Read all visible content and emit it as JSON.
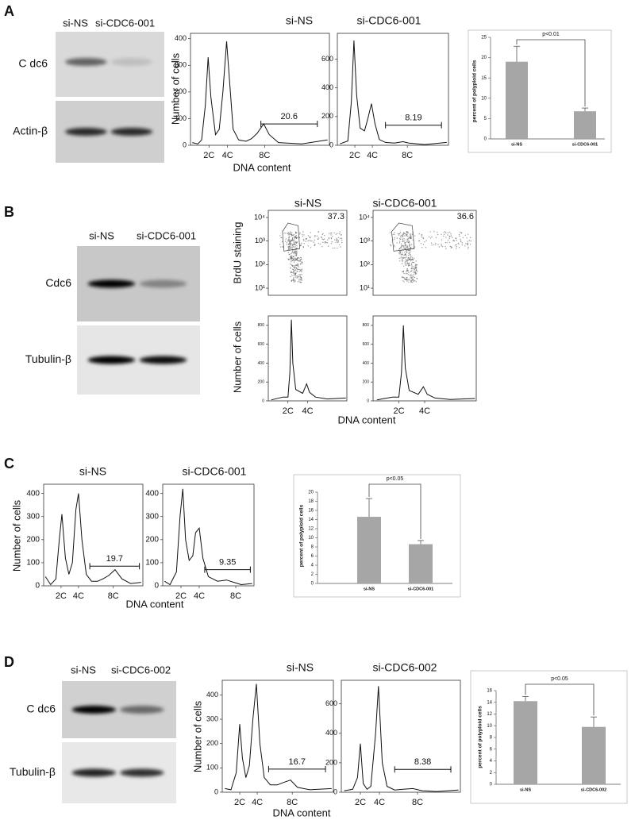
{
  "panels": [
    {
      "label": "A",
      "blot": {
        "lanes": [
          "si-NS",
          "si-CDC6-001"
        ],
        "rows": [
          "C dc6",
          "Actin-β"
        ]
      },
      "ylabel": "Number of cells",
      "xlabel": "DNA content"
    },
    {
      "label": "B",
      "blot": {
        "lanes": [
          "si-NS",
          "si-CDC6-001"
        ],
        "rows": [
          "Cdc6",
          "Tubulin-β"
        ]
      },
      "ylabel": "Number of cells",
      "xlabel": "DNA content"
    },
    {
      "label": "C",
      "ylabel": "Number of cells",
      "xlabel": "DNA content"
    },
    {
      "label": "D",
      "blot": {
        "lanes": [
          "si-NS",
          "si-CDC6-002"
        ],
        "rows": [
          "C dc6",
          "Tubulin-β"
        ]
      },
      "ylabel": "Number of cells",
      "xlabel": "DNA content"
    }
  ],
  "chart_data": [
    {
      "type": "line",
      "title": "si-NS",
      "x": [
        0.2,
        0.8,
        1.2,
        1.6,
        1.9,
        2.2,
        2.7,
        3.1,
        3.5,
        3.9,
        4.2,
        4.6,
        5.2,
        6,
        6.6,
        7.2,
        7.9,
        8.5,
        9.5,
        12,
        14.8
      ],
      "values": [
        10,
        5,
        20,
        150,
        330,
        180,
        40,
        60,
        200,
        390,
        250,
        60,
        20,
        15,
        25,
        45,
        80,
        40,
        10,
        5,
        20
      ],
      "xlim": [
        0,
        15
      ],
      "ylim": [
        0,
        420
      ],
      "yticks": [
        0,
        100,
        200,
        300,
        400
      ],
      "xticks": [
        {
          "value": 2,
          "label": "2C"
        },
        {
          "value": 4,
          "label": "4C"
        },
        {
          "value": 8,
          "label": "8C"
        }
      ],
      "gate": {
        "value": 20.6,
        "x": [
          7.6,
          13.7
        ],
        "y": 80
      },
      "color": "#111111"
    },
    {
      "type": "line",
      "title": "si-CDC6-001",
      "x": [
        0.3,
        1.2,
        1.6,
        1.9,
        2.2,
        2.6,
        3.1,
        3.5,
        3.9,
        4.3,
        4.8,
        5.5,
        6.5,
        7.5,
        8.2,
        10,
        12.5
      ],
      "values": [
        10,
        30,
        300,
        730,
        350,
        120,
        100,
        190,
        290,
        150,
        40,
        20,
        15,
        25,
        15,
        5,
        20
      ],
      "xlim": [
        0,
        12.7
      ],
      "ylim": [
        0,
        780
      ],
      "yticks": [
        0,
        200,
        400,
        600
      ],
      "xticks": [
        {
          "value": 2,
          "label": "2C"
        },
        {
          "value": 4,
          "label": "4C"
        },
        {
          "value": 8,
          "label": "8C"
        }
      ],
      "gate": {
        "value": 8.19,
        "x": [
          5.5,
          11.9
        ],
        "y": 140
      },
      "color": "#111111"
    },
    {
      "type": "bar",
      "categories": [
        "si-NS",
        "si-CDC6-001"
      ],
      "values": [
        19,
        6.8
      ],
      "errors": [
        3.8,
        0.8
      ],
      "ylim": [
        0,
        25
      ],
      "yticks": [
        0,
        5,
        10,
        15,
        20,
        25
      ],
      "ylabel": "percent of polyploid cells",
      "annotation": "p<0.01",
      "color": "#a6a6a6"
    },
    {
      "type": "density",
      "title": "si-NS",
      "ylabel": "BrdU staining",
      "ylim": [
        5,
        20000
      ],
      "log_y": true,
      "yticks": [
        {
          "value": 10,
          "label": "10¹"
        },
        {
          "value": 100,
          "label": "10²"
        },
        {
          "value": 1000,
          "label": "10³"
        },
        {
          "value": 10000,
          "label": "10⁴"
        }
      ],
      "gate_value": 37.3
    },
    {
      "type": "density",
      "title": "si-CDC6-001",
      "ylim": [
        5,
        20000
      ],
      "log_y": true,
      "yticks": [
        {
          "value": 10,
          "label": "10¹"
        },
        {
          "value": 100,
          "label": "10²"
        },
        {
          "value": 1000,
          "label": "10³"
        },
        {
          "value": 10000,
          "label": "10⁴"
        }
      ],
      "gate_value": 36.6
    },
    {
      "type": "line",
      "x": [
        0.3,
        1.5,
        2.0,
        2.2,
        2.35,
        2.5,
        2.8,
        3.5,
        3.9,
        4.2,
        4.8,
        6,
        7.9
      ],
      "values": [
        10,
        40,
        40,
        300,
        860,
        400,
        120,
        80,
        180,
        90,
        40,
        20,
        30
      ],
      "xlim": [
        0,
        8
      ],
      "ylim": [
        0,
        900
      ],
      "yticks": [
        0,
        200,
        400,
        600,
        800
      ],
      "xticks": [
        {
          "value": 2,
          "label": "2C"
        },
        {
          "value": 4,
          "label": "4C"
        }
      ],
      "color": "#111111"
    },
    {
      "type": "line",
      "x": [
        0.3,
        1.5,
        2.0,
        2.2,
        2.35,
        2.5,
        2.8,
        3.5,
        3.9,
        4.2,
        4.8,
        6,
        7.9
      ],
      "values": [
        10,
        40,
        40,
        300,
        800,
        350,
        110,
        70,
        150,
        70,
        30,
        15,
        25
      ],
      "xlim": [
        0,
        8
      ],
      "ylim": [
        0,
        900
      ],
      "yticks": [
        0,
        200,
        400,
        600,
        800
      ],
      "xticks": [
        {
          "value": 2,
          "label": "2C"
        },
        {
          "value": 4,
          "label": "4C"
        }
      ],
      "color": "#111111"
    },
    {
      "type": "line",
      "title": "si-NS",
      "x": [
        0.2,
        0.8,
        1.4,
        1.8,
        2.1,
        2.5,
        2.9,
        3.3,
        3.7,
        4.0,
        4.4,
        4.9,
        5.5,
        6.2,
        6.8,
        7.5,
        8.2,
        9,
        10,
        11.2
      ],
      "values": [
        40,
        5,
        30,
        200,
        310,
        120,
        50,
        100,
        330,
        400,
        200,
        50,
        20,
        20,
        30,
        45,
        70,
        30,
        10,
        15
      ],
      "xlim": [
        0,
        11.4
      ],
      "ylim": [
        0,
        440
      ],
      "yticks": [
        0,
        100,
        200,
        300,
        400
      ],
      "xticks": [
        {
          "value": 2,
          "label": "2C"
        },
        {
          "value": 4,
          "label": "4C"
        },
        {
          "value": 8,
          "label": "8C"
        }
      ],
      "gate": {
        "value": 19.7,
        "x": [
          5.3,
          11.0
        ],
        "y": 85
      },
      "color": "#111111"
    },
    {
      "type": "line",
      "title": "si-CDC6-001",
      "x": [
        0.2,
        0.8,
        1.5,
        1.9,
        2.2,
        2.5,
        2.9,
        3.3,
        3.6,
        4.0,
        4.4,
        5,
        6,
        7,
        7.8,
        8.6,
        9.8
      ],
      "values": [
        20,
        5,
        60,
        300,
        420,
        200,
        110,
        130,
        230,
        250,
        120,
        40,
        20,
        25,
        15,
        5,
        10
      ],
      "xlim": [
        0,
        10
      ],
      "ylim": [
        0,
        440
      ],
      "yticks": [
        0,
        100,
        200,
        300,
        400
      ],
      "xticks": [
        {
          "value": 2,
          "label": "2C"
        },
        {
          "value": 4,
          "label": "4C"
        },
        {
          "value": 8,
          "label": "8C"
        }
      ],
      "gate": {
        "value": 9.35,
        "x": [
          4.6,
          9.6
        ],
        "y": 70
      },
      "color": "#111111"
    },
    {
      "type": "bar",
      "categories": [
        "si-NS",
        "si-CDC6-001"
      ],
      "values": [
        14.6,
        8.6
      ],
      "errors": [
        4.0,
        0.8
      ],
      "ylim": [
        0,
        20
      ],
      "yticks": [
        0,
        2,
        4,
        6,
        8,
        10,
        12,
        14,
        16,
        18,
        20
      ],
      "ylabel": "percent of polyploid cells",
      "annotation": "p<0.05",
      "color": "#a6a6a6"
    },
    {
      "type": "line",
      "title": "si-NS",
      "x": [
        0.3,
        1,
        1.6,
        2.0,
        2.3,
        2.7,
        3.1,
        3.5,
        3.9,
        4.3,
        4.8,
        5.5,
        6.3,
        7,
        7.8,
        8.6,
        10,
        12.5
      ],
      "values": [
        15,
        10,
        80,
        280,
        140,
        60,
        110,
        300,
        445,
        200,
        60,
        30,
        30,
        40,
        50,
        20,
        10,
        15
      ],
      "xlim": [
        0,
        12.7
      ],
      "ylim": [
        0,
        460
      ],
      "yticks": [
        0,
        100,
        200,
        300,
        400
      ],
      "xticks": [
        {
          "value": 2,
          "label": "2C"
        },
        {
          "value": 4,
          "label": "4C"
        },
        {
          "value": 8,
          "label": "8C"
        }
      ],
      "gate": {
        "value": 16.7,
        "x": [
          5.3,
          11.8
        ],
        "y": 95
      },
      "color": "#111111"
    },
    {
      "type": "line",
      "title": "si-CDC6-002",
      "x": [
        0.3,
        1.2,
        1.7,
        2.0,
        2.3,
        2.7,
        3.1,
        3.6,
        3.9,
        4.3,
        4.8,
        5.6,
        6.5,
        7.5,
        8.5,
        10,
        12.3
      ],
      "values": [
        10,
        20,
        100,
        330,
        60,
        20,
        40,
        400,
        720,
        200,
        40,
        15,
        20,
        25,
        10,
        5,
        15
      ],
      "xlim": [
        0,
        12.5
      ],
      "ylim": [
        0,
        760
      ],
      "yticks": [
        0,
        200,
        400,
        600
      ],
      "xticks": [
        {
          "value": 2,
          "label": "2C"
        },
        {
          "value": 4,
          "label": "4C"
        },
        {
          "value": 8,
          "label": "8C"
        }
      ],
      "gate": {
        "value": 8.38,
        "x": [
          5.6,
          11.5
        ],
        "y": 155
      },
      "color": "#111111"
    },
    {
      "type": "bar",
      "categories": [
        "si-NS",
        "si-CDC6-002"
      ],
      "values": [
        14.2,
        9.8
      ],
      "errors": [
        0.8,
        1.7
      ],
      "ylim": [
        0,
        16
      ],
      "yticks": [
        0,
        2,
        4,
        6,
        8,
        10,
        12,
        14,
        16
      ],
      "ylabel": "percent of polyploid cells",
      "annotation": "p<0.05",
      "color": "#a6a6a6"
    }
  ]
}
